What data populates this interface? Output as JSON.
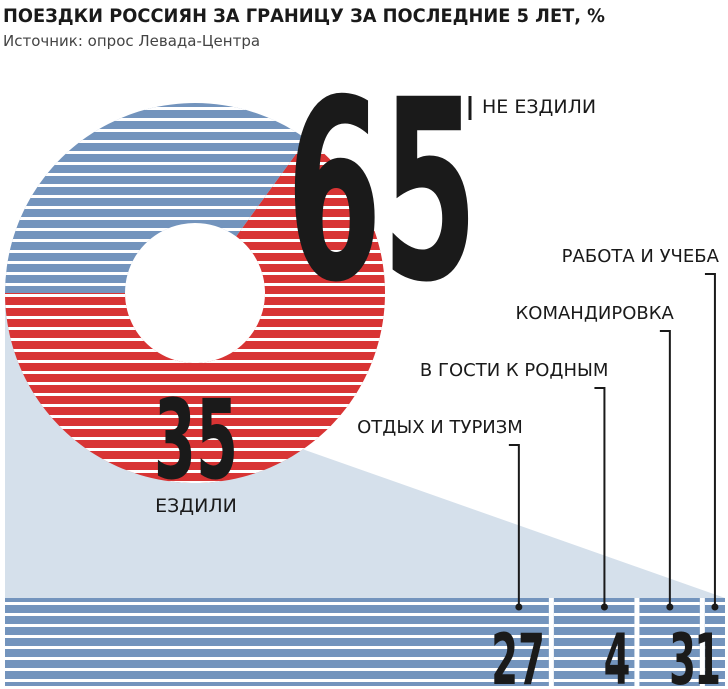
{
  "chart_data": [
    {
      "type": "pie",
      "title": "ПОЕЗДКИ РОССИЯН ЗА ГРАНИЦУ ЗА ПОСЛЕДНИЕ 5 ЛЕТ, %",
      "subtitle": "Источник: опрос Левада-Центра",
      "categories": [
        "НЕ ЕЗДИЛИ",
        "ЕЗДИЛИ"
      ],
      "values": [
        65,
        35
      ],
      "colors": [
        "#d83434",
        "#7394bd"
      ]
    },
    {
      "type": "bar",
      "categories": [
        "ОТДЫХ И ТУРИЗМ",
        "В ГОСТИ К РОДНЫМ",
        "КОМАНДИРОВКА",
        "РАБОТА И УЧЕБА"
      ],
      "values": [
        27,
        4,
        3,
        1
      ],
      "color": "#7394bd"
    }
  ]
}
